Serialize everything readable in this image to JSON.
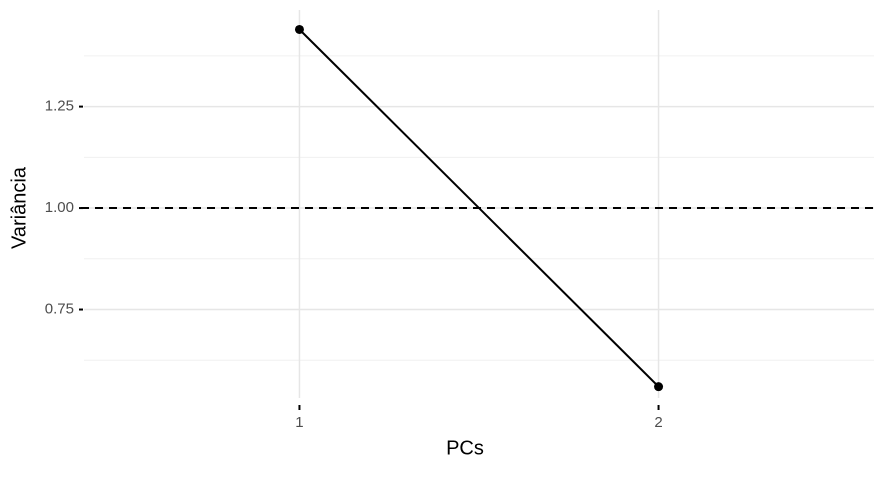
{
  "chart_data": {
    "type": "line",
    "x_label": "PCs",
    "y_label": "Variância",
    "x": [
      1,
      2
    ],
    "series": [
      {
        "color": "#000000",
        "values": [
          1.44,
          0.56
        ]
      }
    ],
    "xlim": [
      0.4,
      2.6
    ],
    "xticks": [
      1,
      2
    ],
    "ylim": [
      0.532,
      1.488
    ],
    "yticks": [
      {
        "value": 0.75,
        "label": "0.75"
      },
      {
        "value": 1.0,
        "label": "1.00"
      },
      {
        "value": 1.25,
        "label": "1.25"
      }
    ],
    "yminor": [
      0.625,
      0.875,
      1.125,
      1.375
    ],
    "hline": 1.0,
    "hline_style": "dashed",
    "grid": true
  }
}
